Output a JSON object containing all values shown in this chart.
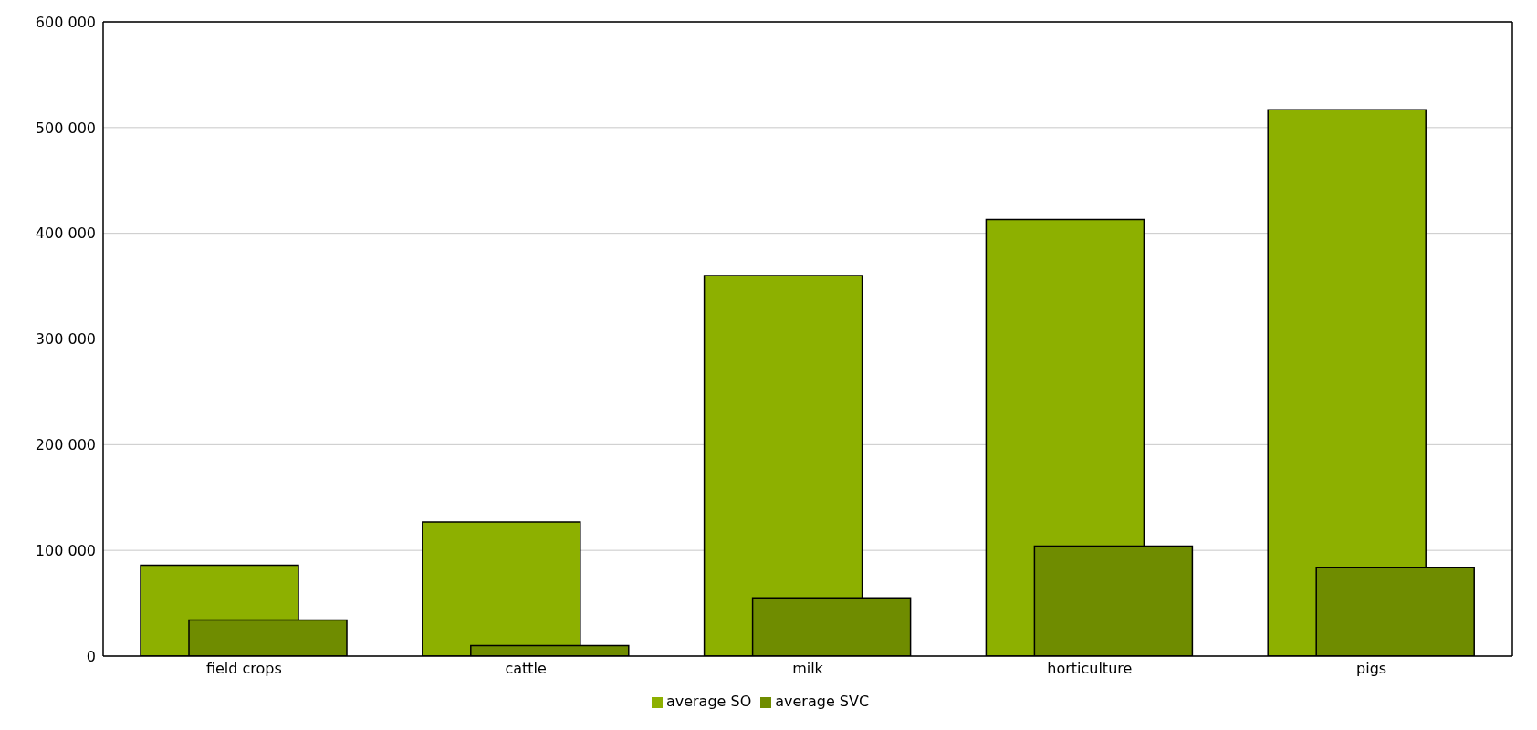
{
  "chart_data": {
    "type": "bar",
    "categories": [
      "field crops",
      "cattle",
      "milk",
      "horticulture",
      "pigs"
    ],
    "series": [
      {
        "name": "average SO",
        "color": "#8db000",
        "values": [
          86000,
          127000,
          360000,
          413000,
          517000
        ]
      },
      {
        "name": "average SVC",
        "color": "#6f8c00",
        "values": [
          34000,
          10000,
          55000,
          104000,
          84000
        ]
      }
    ],
    "ylim": [
      0,
      600000
    ],
    "yticks": [
      {
        "value": 0,
        "label": "0"
      },
      {
        "value": 100000,
        "label": "100 000"
      },
      {
        "value": 200000,
        "label": "200 000"
      },
      {
        "value": 300000,
        "label": "300 000"
      },
      {
        "value": 400000,
        "label": "400 000"
      },
      {
        "value": 500000,
        "label": "500 000"
      },
      {
        "value": 600000,
        "label": "600 000"
      }
    ],
    "grid": "y",
    "legend": "bottom"
  }
}
